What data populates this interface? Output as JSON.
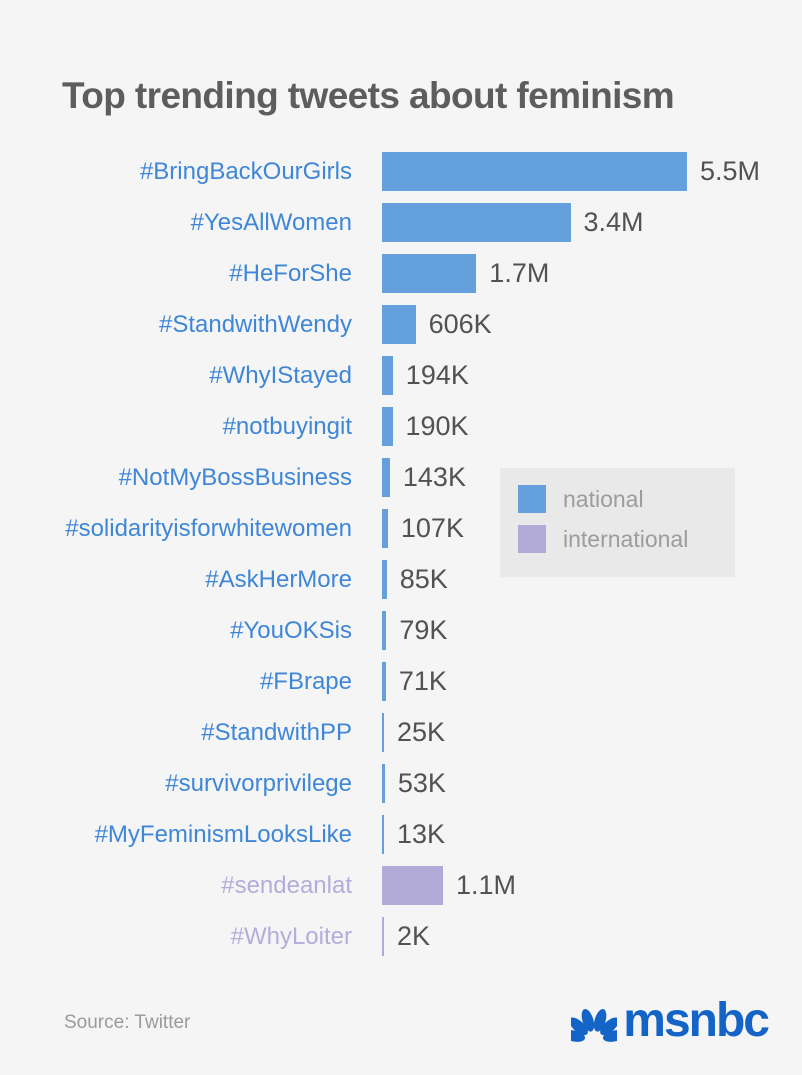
{
  "page": {
    "title": "Top trending tweets about feminism",
    "source": "Source: Twitter",
    "brand": "msnbc"
  },
  "colors": {
    "background": "#f5f5f6",
    "national": "#64a0dc",
    "international": "#b2abd7",
    "national_label": "#3f87d6",
    "international_label": "#b4acda",
    "title_text": "#5d5d5f",
    "value_text": "#525254",
    "legend_bg": "#e9e9ea",
    "legend_text": "#9c9c9c",
    "source_text": "#9b9b9b",
    "brand_blue": "#1464c8"
  },
  "legend": {
    "items": [
      {
        "label": "national",
        "group": "national"
      },
      {
        "label": "international",
        "group": "international"
      }
    ]
  },
  "chart_data": {
    "type": "bar",
    "orientation": "horizontal",
    "title": "Top trending tweets about feminism",
    "legend_position": "middle-right",
    "grid": false,
    "rows": [
      {
        "hashtag": "#BringBackOurGirls",
        "value": 5500000,
        "label": "5.5M",
        "group": "national"
      },
      {
        "hashtag": "#YesAllWomen",
        "value": 3400000,
        "label": "3.4M",
        "group": "national"
      },
      {
        "hashtag": "#HeForShe",
        "value": 1700000,
        "label": "1.7M",
        "group": "national"
      },
      {
        "hashtag": "#StandwithWendy",
        "value": 606000,
        "label": "606K",
        "group": "national"
      },
      {
        "hashtag": "#WhyIStayed",
        "value": 194000,
        "label": "194K",
        "group": "national"
      },
      {
        "hashtag": "#notbuyingit",
        "value": 190000,
        "label": "190K",
        "group": "national"
      },
      {
        "hashtag": "#NotMyBossBusiness",
        "value": 143000,
        "label": "143K",
        "group": "national"
      },
      {
        "hashtag": "#solidarityisforwhitewomen",
        "value": 107000,
        "label": "107K",
        "group": "national"
      },
      {
        "hashtag": "#AskHerMore",
        "value": 85000,
        "label": "85K",
        "group": "national"
      },
      {
        "hashtag": "#YouOKSis",
        "value": 79000,
        "label": "79K",
        "group": "national"
      },
      {
        "hashtag": "#FBrape",
        "value": 71000,
        "label": "71K",
        "group": "national"
      },
      {
        "hashtag": "#StandwithPP",
        "value": 25000,
        "label": "25K",
        "group": "national"
      },
      {
        "hashtag": "#survivorprivilege",
        "value": 53000,
        "label": "53K",
        "group": "national"
      },
      {
        "hashtag": "#MyFeminismLooksLike",
        "value": 13000,
        "label": "13K",
        "group": "national"
      },
      {
        "hashtag": "#sendeanlat",
        "value": 1100000,
        "label": "1.1M",
        "group": "international"
      },
      {
        "hashtag": "#WhyLoiter",
        "value": 2000,
        "label": "2K",
        "group": "international"
      }
    ]
  }
}
